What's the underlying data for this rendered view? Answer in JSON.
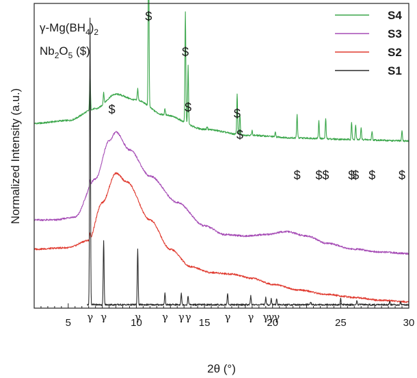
{
  "chart_data": {
    "type": "line",
    "xlabel": "2θ (°)",
    "ylabel": "Normalized Intensity (a.u.)",
    "xlim": [
      2.5,
      30
    ],
    "x_ticks": [
      "5",
      "10",
      "15",
      "20",
      "25",
      "30"
    ],
    "y_ticks": "none",
    "legend": {
      "placement": "top-right",
      "entries": [
        {
          "name": "S4",
          "color": "#3aa64a"
        },
        {
          "name": "S3",
          "color": "#a54bb5"
        },
        {
          "name": "S2",
          "color": "#e03a2f"
        },
        {
          "name": "S1",
          "color": "#2b2b2b"
        }
      ]
    },
    "annotations": {
      "phase1_symbol": "γ-Mg(BH",
      "phase1_sub": "4",
      "phase1_end": ")",
      "phase1_sub2": "2",
      "phase2_symbol": "Nb",
      "phase2_sub1": "2",
      "phase2_mid": "O",
      "phase2_sub2": "5",
      "phase2_end": " ($)"
    },
    "marker_nb2o5": "$",
    "marker_mgbh4": "γ",
    "nb2o5_peaks_upper": [
      8.2,
      10.9,
      13.6,
      13.8,
      17.4,
      17.6
    ],
    "nb2o5_peaks_lower": [
      21.8,
      23.4,
      23.9,
      25.8,
      26.1,
      27.3,
      29.5
    ],
    "gamma_peaks": [
      6.6,
      7.6,
      10.1,
      12.1,
      13.3,
      13.8,
      16.7,
      18.4,
      19.5,
      19.9,
      20.3
    ],
    "series": [
      {
        "name": "S4",
        "color": "#3aa64a",
        "baseline": [
          [
            2.5,
            0.62
          ],
          [
            5,
            0.63
          ],
          [
            7,
            0.67
          ],
          [
            8.5,
            0.72
          ],
          [
            10,
            0.7
          ],
          [
            12,
            0.65
          ],
          [
            15,
            0.6
          ],
          [
            18,
            0.58
          ],
          [
            22,
            0.57
          ],
          [
            26,
            0.565
          ],
          [
            30,
            0.56
          ]
        ],
        "peaks": [
          [
            6.6,
            0.12
          ],
          [
            7.6,
            0.04
          ],
          [
            10.1,
            0.04
          ],
          [
            10.9,
            0.55
          ],
          [
            12.1,
            0.02
          ],
          [
            13.6,
            0.38
          ],
          [
            13.8,
            0.2
          ],
          [
            15.2,
            0.01
          ],
          [
            17.4,
            0.14
          ],
          [
            17.6,
            0.07
          ],
          [
            18.5,
            0.015
          ],
          [
            20.2,
            0.015
          ],
          [
            21.8,
            0.08
          ],
          [
            23.4,
            0.06
          ],
          [
            23.9,
            0.07
          ],
          [
            25.8,
            0.06
          ],
          [
            26.1,
            0.05
          ],
          [
            26.5,
            0.04
          ],
          [
            27.3,
            0.03
          ],
          [
            29.5,
            0.035
          ]
        ]
      },
      {
        "name": "S3",
        "color": "#a54bb5",
        "baseline": [
          [
            2.5,
            0.29
          ],
          [
            4,
            0.29
          ],
          [
            5.5,
            0.3
          ],
          [
            7,
            0.43
          ],
          [
            8,
            0.56
          ],
          [
            8.5,
            0.59
          ],
          [
            9.5,
            0.53
          ],
          [
            11,
            0.44
          ],
          [
            13,
            0.35
          ],
          [
            15,
            0.27
          ],
          [
            16.5,
            0.24
          ],
          [
            18,
            0.235
          ],
          [
            19.5,
            0.24
          ],
          [
            21,
            0.25
          ],
          [
            22.5,
            0.235
          ],
          [
            24,
            0.21
          ],
          [
            26,
            0.19
          ],
          [
            28,
            0.18
          ],
          [
            30,
            0.175
          ]
        ],
        "peaks": [
          [
            6.6,
            0.02
          ]
        ]
      },
      {
        "name": "S2",
        "color": "#e03a2f",
        "baseline": [
          [
            2.5,
            0.19
          ],
          [
            5,
            0.195
          ],
          [
            6.5,
            0.22
          ],
          [
            7.5,
            0.35
          ],
          [
            8.5,
            0.45
          ],
          [
            9.3,
            0.42
          ],
          [
            11,
            0.29
          ],
          [
            12.5,
            0.19
          ],
          [
            14,
            0.13
          ],
          [
            15.5,
            0.11
          ],
          [
            17,
            0.105
          ],
          [
            18.5,
            0.09
          ],
          [
            20,
            0.07
          ],
          [
            22,
            0.05
          ],
          [
            24,
            0.035
          ],
          [
            26,
            0.025
          ],
          [
            28,
            0.015
          ],
          [
            30,
            0.01
          ]
        ],
        "peaks": [
          [
            6.6,
            0.02
          ]
        ]
      },
      {
        "name": "S1",
        "color": "#2b2b2b",
        "baseline": [
          [
            6.4,
            0.0
          ],
          [
            30,
            0.0
          ]
        ],
        "peaks": [
          [
            6.6,
            0.98
          ],
          [
            7.6,
            0.22
          ],
          [
            10.1,
            0.19
          ],
          [
            12.1,
            0.04
          ],
          [
            13.3,
            0.04
          ],
          [
            13.8,
            0.03
          ],
          [
            16.7,
            0.04
          ],
          [
            18.4,
            0.03
          ],
          [
            19.5,
            0.025
          ],
          [
            19.9,
            0.02
          ],
          [
            20.3,
            0.02
          ],
          [
            22.8,
            0.01
          ],
          [
            25.0,
            0.02
          ],
          [
            26.2,
            0.015
          ],
          [
            28.6,
            0.01
          ],
          [
            29.4,
            0.01
          ]
        ]
      }
    ]
  }
}
